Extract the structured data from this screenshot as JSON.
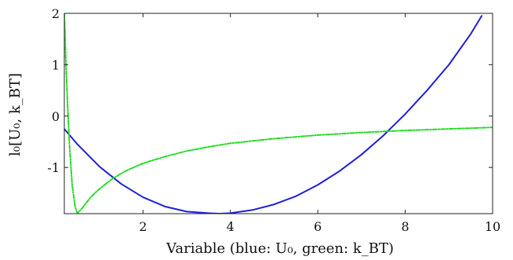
{
  "chart_data": {
    "type": "line",
    "xlabel": "Variable (blue: U₀, green: k_BT)",
    "ylabel": "l₀[U₀, k_BT]",
    "xlim": [
      0.2,
      10
    ],
    "ylim": [
      -1.9,
      2
    ],
    "xticks": [
      2,
      4,
      6,
      8,
      10
    ],
    "yticks": [
      -1,
      0,
      1,
      2
    ],
    "xtick_labels": [
      "2",
      "4",
      "6",
      "8",
      "10"
    ],
    "ytick_labels": [
      "-1",
      "0",
      "1",
      "2"
    ],
    "grid": false,
    "legend": "none",
    "series": [
      {
        "color": "#1f1fd6",
        "style": "solid",
        "x": [
          0.2,
          0.5,
          1,
          1.5,
          2,
          2.5,
          3,
          3.5,
          3.75,
          4,
          4.5,
          5,
          5.5,
          6,
          6.5,
          7,
          7.5,
          8,
          8.5,
          9,
          9.5,
          9.75
        ],
        "y": [
          -0.25,
          -0.55,
          -0.98,
          -1.32,
          -1.58,
          -1.76,
          -1.86,
          -1.89,
          -1.9,
          -1.89,
          -1.83,
          -1.72,
          -1.56,
          -1.34,
          -1.07,
          -0.75,
          -0.38,
          0.04,
          0.5,
          1.0,
          1.6,
          1.95
        ]
      },
      {
        "color": "#22dd22",
        "style": "dash-dot",
        "x": [
          0.2,
          0.23,
          0.27,
          0.32,
          0.38,
          0.45,
          0.5,
          0.55,
          0.65,
          0.8,
          1.0,
          1.3,
          1.6,
          2.0,
          2.5,
          3.0,
          3.5,
          4.0,
          5.0,
          6.0,
          7.0,
          8.0,
          9.0,
          10.0
        ],
        "y": [
          2.0,
          1.2,
          0.3,
          -0.6,
          -1.35,
          -1.78,
          -1.89,
          -1.85,
          -1.75,
          -1.58,
          -1.42,
          -1.22,
          -1.07,
          -0.92,
          -0.79,
          -0.68,
          -0.6,
          -0.53,
          -0.44,
          -0.37,
          -0.32,
          -0.28,
          -0.25,
          -0.22
        ]
      }
    ]
  }
}
